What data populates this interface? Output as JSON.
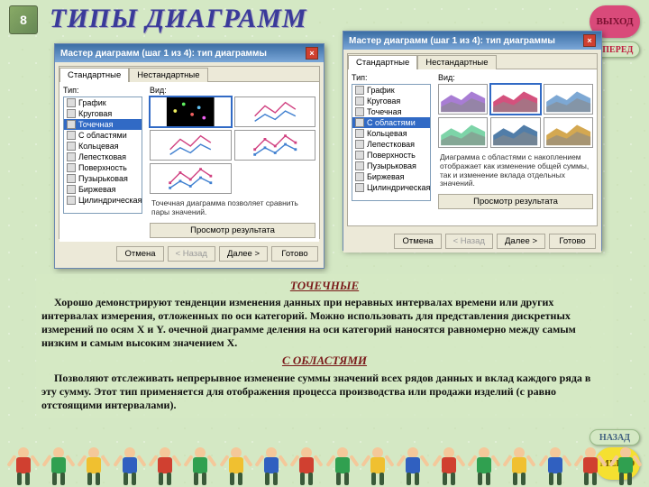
{
  "page": {
    "title": "ТИПЫ ДИАГРАММ",
    "corner_num": "8"
  },
  "nav": {
    "exit": "ВЫХОД",
    "forward": "ВПЕРЕД",
    "back": "НАЗАД",
    "menu": "МЕНЮ"
  },
  "wizard": {
    "title": "Мастер диаграмм (шаг 1 из 4): тип диаграммы",
    "tab_standard": "Стандартные",
    "tab_nonstandard": "Нестандартные",
    "label_type": "Тип:",
    "label_view": "Вид:",
    "types": [
      "График",
      "Круговая",
      "Точечная",
      "С областями",
      "Кольцевая",
      "Лепестковая",
      "Поверхность",
      "Пузырьковая",
      "Биржевая",
      "Цилиндрическая"
    ],
    "selected_type_wz1": 2,
    "selected_type_wz2": 3,
    "desc_wz1": "Точечная диаграмма позволяет сравнить пары значений.",
    "desc_wz2": "Диаграмма с областями с накоплением отображает как изменение общей суммы, так и изменение вклада отдельных значений.",
    "btn_preview": "Просмотр результата",
    "btn_cancel": "Отмена",
    "btn_back": "< Назад",
    "btn_next": "Далее >",
    "btn_finish": "Готово"
  },
  "text": {
    "h1": "ТОЧЕЧНЫЕ",
    "p1": "Хорошо демонстрируют тенденции изменения данных при неравных интервалах времени или других интервалах измерения, отложенных по оси категорий. Можно использовать для представления дискретных измерений по осям X и Y. очечной диаграмме деления на оси категорий наносятся равномерно между самым низким и самым высоким значением X.",
    "h2": "С ОБЛАСТЯМИ",
    "p2": "Позволяют отслеживать непрерывное изменение суммы значений всех рядов данных и вклад каждого ряда в эту сумму. Этот тип применяется для отображения процесса производства или продажи изделий (с равно отстоящими интервалами)."
  },
  "colors": {
    "bg": "#d4e8c4",
    "title": "#3a3a9a",
    "exit_bg": "#d94a7a",
    "menu_bg": "#f5e030",
    "win_title": "#3b6ea5",
    "selection": "#316ac5",
    "kid_shirts": [
      "#d04030",
      "#30a050",
      "#f0c030",
      "#3060c0"
    ]
  },
  "wz1_previews": {
    "type": "scatter-thumbnails",
    "count": 5,
    "thumbs": [
      {
        "bg": "#000",
        "dots": [
          [
            10,
            16,
            "#f0f060"
          ],
          [
            20,
            8,
            "#60f060"
          ],
          [
            30,
            20,
            "#f06060"
          ],
          [
            38,
            12,
            "#60c0f0"
          ],
          [
            44,
            24,
            "#f060f0"
          ]
        ]
      },
      {
        "lines": true,
        "colors": [
          "#d04080",
          "#4080d0"
        ]
      },
      {
        "lines": true,
        "colors": [
          "#d04080",
          "#4080d0"
        ],
        "smooth": true
      },
      {
        "lines": true,
        "colors": [
          "#d04080",
          "#4080d0"
        ],
        "markers": true
      },
      {
        "lines": true,
        "colors": [
          "#d04080",
          "#4080d0"
        ],
        "markers": true,
        "smooth": true
      }
    ]
  },
  "wz2_previews": {
    "type": "area-thumbnails",
    "count": 6,
    "colors": [
      "#9966cc",
      "#cc3366",
      "#6699cc",
      "#66cc99",
      "#336699",
      "#cc9933"
    ]
  }
}
